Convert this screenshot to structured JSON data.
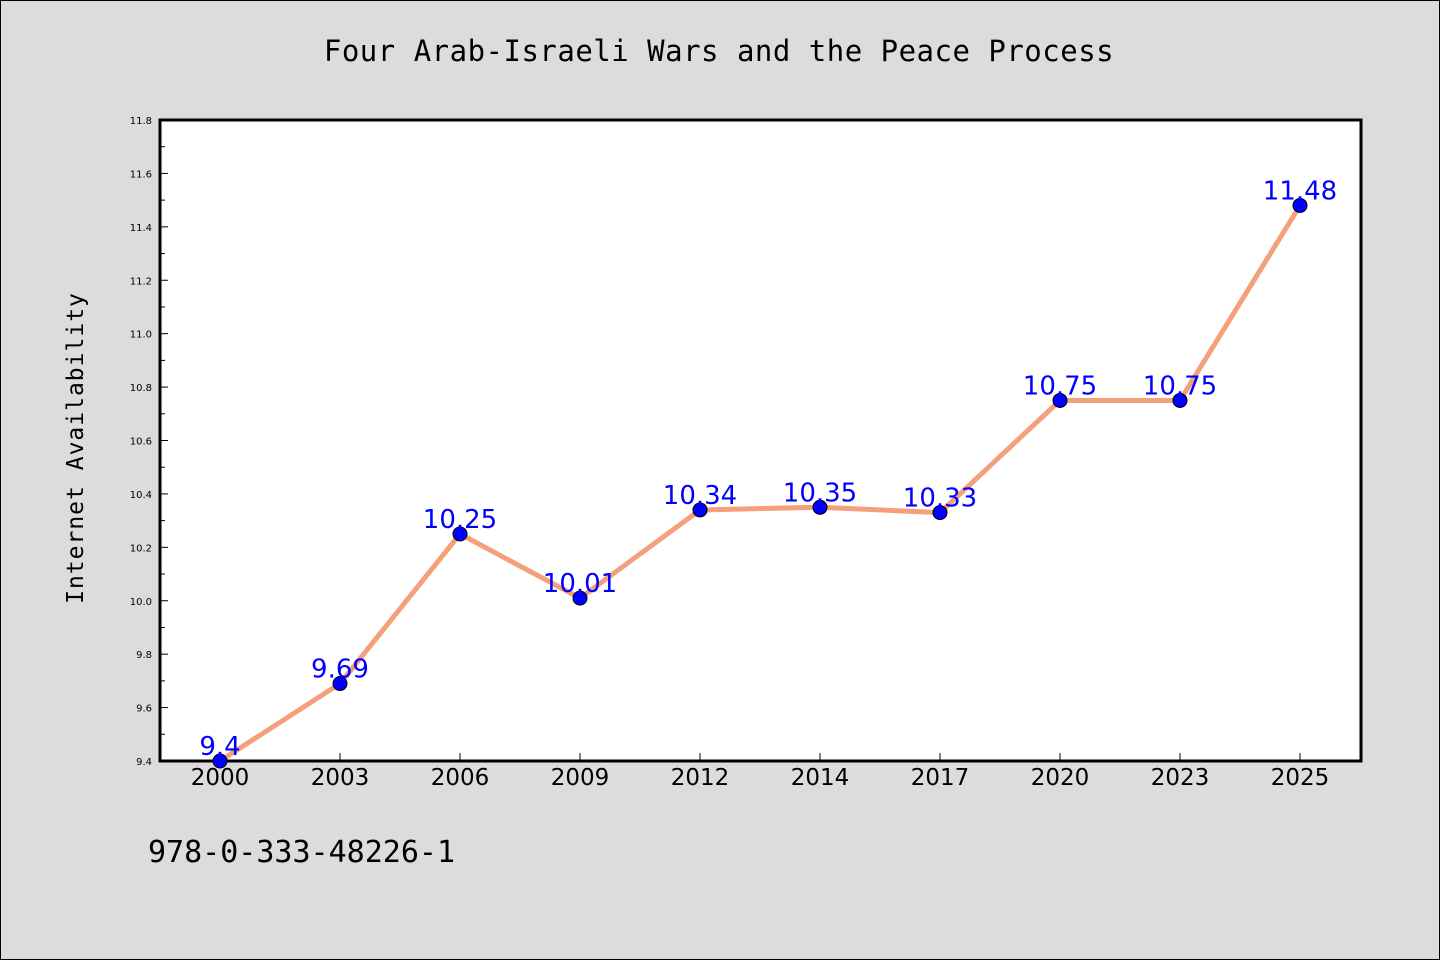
{
  "chart_data": {
    "type": "line",
    "title": "Four Arab-Israeli Wars and the Peace Process",
    "xlabel": "",
    "ylabel": "Internet Availability",
    "categories": [
      "2000",
      "2003",
      "2006",
      "2009",
      "2012",
      "2014",
      "2017",
      "2020",
      "2023",
      "2025"
    ],
    "values": [
      9.4,
      9.69,
      10.25,
      10.01,
      10.34,
      10.35,
      10.33,
      10.75,
      10.75,
      11.48
    ],
    "value_labels": [
      "9.4",
      "9.69",
      "10.25",
      "10.01",
      "10.34",
      "10.35",
      "10.33",
      "10.75",
      "10.75",
      "11.48"
    ],
    "ylim": [
      9.4,
      11.8
    ],
    "yticks": [
      "9.4",
      "9.6",
      "9.8",
      "10.0",
      "10.2",
      "10.4",
      "10.6",
      "10.8",
      "11.0",
      "11.2",
      "11.4",
      "11.6",
      "11.8"
    ],
    "grid": false,
    "line_color": "#f4a07c",
    "marker_color": "#0000ff",
    "label_color": "#0000ff",
    "background_color": "#dcdcdc",
    "plot_background": "#ffffff"
  },
  "footer": {
    "isbn": "978-0-333-48226-1"
  }
}
